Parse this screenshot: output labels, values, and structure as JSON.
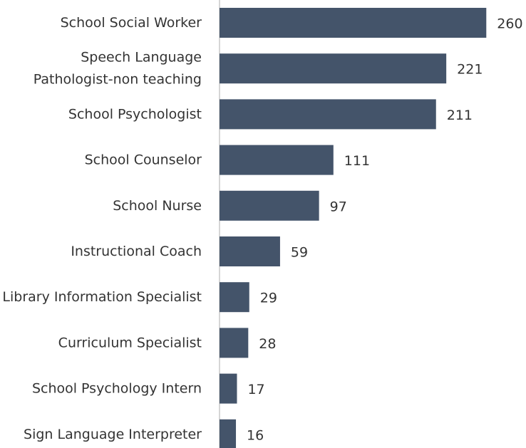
{
  "chart_data": {
    "type": "bar",
    "orientation": "horizontal",
    "categories": [
      "School Social Worker",
      "Speech Language Pathologist-non teaching",
      "School Psychologist",
      "School Counselor",
      "School Nurse",
      "Instructional Coach",
      "Library Information Specialist",
      "Curriculum Specialist",
      "School Psychology Intern",
      "Sign Language Interpreter"
    ],
    "values": [
      260,
      221,
      211,
      111,
      97,
      59,
      29,
      28,
      17,
      16
    ],
    "color": "#44546a",
    "xlim": [
      0,
      298
    ]
  }
}
